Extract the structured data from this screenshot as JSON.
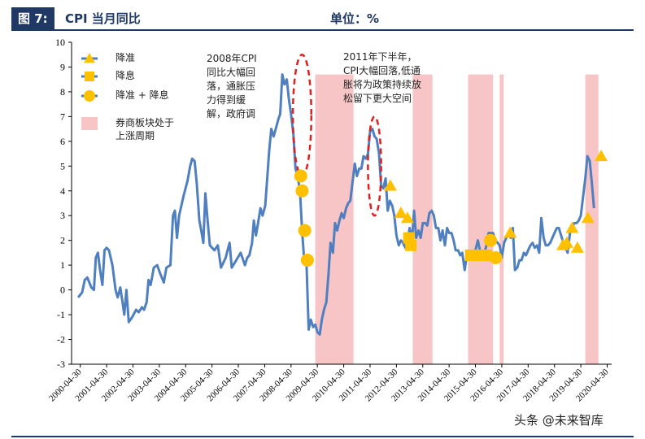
{
  "header": {
    "fig_num": "图 7:",
    "title": "CPI 当月同比",
    "unit": "单位：%"
  },
  "watermark": "头条 @未来智库",
  "annotations": [
    {
      "id": "a2008",
      "text": "2008年CPI\n同比大幅回\n落，通胀压\n力得到缓\n解，政府调"
    },
    {
      "id": "a2011",
      "text": "2011年下半年，\nCPI大幅回落,低通\n胀将为政策持续放\n松留下更大空间"
    }
  ],
  "colors": {
    "line": "#4f7fbf",
    "shade": "#f7c5c5",
    "marker": "#ffc000",
    "circle": "#e02020",
    "header": "#1f3864"
  },
  "chart_data": {
    "type": "line",
    "ylim": [
      -3,
      10
    ],
    "yticks": [
      "-3",
      "-2",
      "-1",
      "0",
      "1",
      "2",
      "3",
      "4",
      "5",
      "6",
      "7",
      "8",
      "9",
      "10"
    ],
    "xlabels": [
      "2000-04-30",
      "2001-04-30",
      "2002-04-30",
      "2003-04-30",
      "2004-04-30",
      "2005-04-30",
      "2006-04-30",
      "2007-04-30",
      "2008-04-30",
      "2009-04-30",
      "2010-04-30",
      "2011-04-30",
      "2012-04-30",
      "2013-04-30",
      "2014-04-30",
      "2015-04-30",
      "2016-04-30",
      "2017-04-30",
      "2018-04-30",
      "2019-04-30",
      "2020-04-30"
    ],
    "legend": [
      {
        "marker": "triangle",
        "label": "降准"
      },
      {
        "marker": "square",
        "label": "降息"
      },
      {
        "marker": "circle",
        "label": "降准 + 降息"
      },
      {
        "marker": "rect",
        "label": "券商板块处于\n上涨周期"
      }
    ],
    "shaded_periods": [
      [
        2009.25,
        2010.7
      ],
      [
        2012.95,
        2013.7
      ],
      [
        2015.05,
        2016.0
      ],
      [
        2016.25,
        2016.4
      ],
      [
        2019.5,
        2020.0
      ]
    ],
    "series": [
      {
        "name": "CPI当月同比",
        "points": [
          [
            2000.25,
            -0.3
          ],
          [
            2000.4,
            -0.1
          ],
          [
            2000.5,
            0.4
          ],
          [
            2000.6,
            0.5
          ],
          [
            2000.75,
            0.1
          ],
          [
            2000.85,
            0.0
          ],
          [
            2000.92,
            1.3
          ],
          [
            2001.0,
            1.5
          ],
          [
            2001.08,
            0.8
          ],
          [
            2001.17,
            0.2
          ],
          [
            2001.25,
            1.6
          ],
          [
            2001.33,
            1.7
          ],
          [
            2001.42,
            1.6
          ],
          [
            2001.55,
            1.0
          ],
          [
            2001.67,
            0.0
          ],
          [
            2001.75,
            -0.3
          ],
          [
            2001.85,
            0.1
          ],
          [
            2001.92,
            -0.4
          ],
          [
            2002.0,
            -1.0
          ],
          [
            2002.08,
            0.0
          ],
          [
            2002.17,
            -1.3
          ],
          [
            2002.3,
            -1.1
          ],
          [
            2002.45,
            -0.8
          ],
          [
            2002.55,
            -0.9
          ],
          [
            2002.67,
            -0.7
          ],
          [
            2002.75,
            -0.8
          ],
          [
            2002.85,
            -0.5
          ],
          [
            2002.92,
            0.4
          ],
          [
            2003.0,
            0.2
          ],
          [
            2003.12,
            0.9
          ],
          [
            2003.25,
            1.0
          ],
          [
            2003.35,
            0.7
          ],
          [
            2003.5,
            0.3
          ],
          [
            2003.6,
            0.9
          ],
          [
            2003.75,
            1.0
          ],
          [
            2003.85,
            3.0
          ],
          [
            2003.92,
            3.2
          ],
          [
            2004.0,
            2.1
          ],
          [
            2004.08,
            3.0
          ],
          [
            2004.25,
            3.8
          ],
          [
            2004.4,
            4.4
          ],
          [
            2004.5,
            5.0
          ],
          [
            2004.58,
            5.3
          ],
          [
            2004.67,
            5.2
          ],
          [
            2004.75,
            4.3
          ],
          [
            2004.85,
            2.8
          ],
          [
            2004.92,
            2.4
          ],
          [
            2005.0,
            1.9
          ],
          [
            2005.08,
            3.9
          ],
          [
            2005.17,
            2.7
          ],
          [
            2005.25,
            1.8
          ],
          [
            2005.42,
            1.6
          ],
          [
            2005.55,
            1.8
          ],
          [
            2005.67,
            0.9
          ],
          [
            2005.85,
            1.3
          ],
          [
            2005.92,
            1.6
          ],
          [
            2006.0,
            1.9
          ],
          [
            2006.08,
            0.9
          ],
          [
            2006.25,
            1.2
          ],
          [
            2006.42,
            1.5
          ],
          [
            2006.58,
            1.0
          ],
          [
            2006.67,
            1.3
          ],
          [
            2006.75,
            1.4
          ],
          [
            2006.85,
            1.9
          ],
          [
            2006.92,
            2.8
          ],
          [
            2007.0,
            2.2
          ],
          [
            2007.08,
            2.7
          ],
          [
            2007.17,
            3.3
          ],
          [
            2007.25,
            3.0
          ],
          [
            2007.35,
            3.4
          ],
          [
            2007.42,
            4.4
          ],
          [
            2007.5,
            5.6
          ],
          [
            2007.58,
            6.5
          ],
          [
            2007.67,
            6.2
          ],
          [
            2007.75,
            6.5
          ],
          [
            2007.85,
            6.9
          ],
          [
            2007.92,
            7.1
          ],
          [
            2008.0,
            8.7
          ],
          [
            2008.08,
            8.3
          ],
          [
            2008.17,
            8.5
          ],
          [
            2008.25,
            7.7
          ],
          [
            2008.33,
            7.1
          ],
          [
            2008.42,
            6.3
          ],
          [
            2008.5,
            4.9
          ],
          [
            2008.58,
            4.6
          ],
          [
            2008.67,
            4.0
          ],
          [
            2008.75,
            2.4
          ],
          [
            2008.83,
            1.2
          ],
          [
            2008.92,
            1.0
          ],
          [
            2009.0,
            -1.6
          ],
          [
            2009.08,
            -1.2
          ],
          [
            2009.17,
            -1.5
          ],
          [
            2009.25,
            -1.4
          ],
          [
            2009.33,
            -1.7
          ],
          [
            2009.42,
            -1.8
          ],
          [
            2009.5,
            -1.2
          ],
          [
            2009.58,
            -0.8
          ],
          [
            2009.67,
            -0.5
          ],
          [
            2009.75,
            0.6
          ],
          [
            2009.83,
            1.9
          ],
          [
            2009.92,
            1.5
          ],
          [
            2010.0,
            2.7
          ],
          [
            2010.08,
            2.4
          ],
          [
            2010.17,
            2.8
          ],
          [
            2010.25,
            3.1
          ],
          [
            2010.33,
            2.9
          ],
          [
            2010.42,
            3.3
          ],
          [
            2010.5,
            3.5
          ],
          [
            2010.58,
            3.6
          ],
          [
            2010.67,
            4.4
          ],
          [
            2010.75,
            5.1
          ],
          [
            2010.83,
            4.6
          ],
          [
            2010.92,
            4.9
          ],
          [
            2011.0,
            4.9
          ],
          [
            2011.08,
            5.4
          ],
          [
            2011.17,
            5.3
          ],
          [
            2011.25,
            5.5
          ],
          [
            2011.33,
            6.4
          ],
          [
            2011.42,
            6.5
          ],
          [
            2011.5,
            6.2
          ],
          [
            2011.58,
            6.1
          ],
          [
            2011.67,
            5.5
          ],
          [
            2011.75,
            4.2
          ],
          [
            2011.83,
            4.1
          ],
          [
            2011.92,
            4.5
          ],
          [
            2012.0,
            3.2
          ],
          [
            2012.08,
            3.6
          ],
          [
            2012.17,
            3.4
          ],
          [
            2012.25,
            3.0
          ],
          [
            2012.33,
            2.2
          ],
          [
            2012.42,
            1.8
          ],
          [
            2012.5,
            2.0
          ],
          [
            2012.58,
            1.9
          ],
          [
            2012.67,
            1.7
          ],
          [
            2012.75,
            2.0
          ],
          [
            2012.83,
            2.5
          ],
          [
            2012.92,
            2.0
          ],
          [
            2013.0,
            3.2
          ],
          [
            2013.08,
            2.1
          ],
          [
            2013.17,
            2.4
          ],
          [
            2013.25,
            2.1
          ],
          [
            2013.33,
            2.7
          ],
          [
            2013.42,
            2.7
          ],
          [
            2013.5,
            2.6
          ],
          [
            2013.58,
            3.1
          ],
          [
            2013.67,
            3.2
          ],
          [
            2013.75,
            3.0
          ],
          [
            2013.83,
            2.5
          ],
          [
            2013.92,
            2.5
          ],
          [
            2014.0,
            2.0
          ],
          [
            2014.08,
            2.4
          ],
          [
            2014.17,
            1.8
          ],
          [
            2014.25,
            2.5
          ],
          [
            2014.33,
            2.3
          ],
          [
            2014.42,
            2.3
          ],
          [
            2014.5,
            2.0
          ],
          [
            2014.58,
            1.6
          ],
          [
            2014.67,
            1.6
          ],
          [
            2014.75,
            1.4
          ],
          [
            2014.83,
            1.5
          ],
          [
            2014.92,
            0.8
          ],
          [
            2015.0,
            1.4
          ],
          [
            2015.08,
            1.4
          ],
          [
            2015.17,
            1.5
          ],
          [
            2015.25,
            1.4
          ],
          [
            2015.33,
            1.6
          ],
          [
            2015.42,
            2.0
          ],
          [
            2015.5,
            1.6
          ],
          [
            2015.58,
            1.3
          ],
          [
            2015.67,
            1.5
          ],
          [
            2015.75,
            1.8
          ],
          [
            2015.83,
            2.3
          ],
          [
            2015.92,
            2.3
          ],
          [
            2016.0,
            2.3
          ],
          [
            2016.08,
            2.0
          ],
          [
            2016.17,
            1.9
          ],
          [
            2016.25,
            1.8
          ],
          [
            2016.33,
            1.3
          ],
          [
            2016.42,
            1.9
          ],
          [
            2016.5,
            2.1
          ],
          [
            2016.58,
            2.3
          ],
          [
            2016.67,
            2.1
          ],
          [
            2016.75,
            2.5
          ],
          [
            2016.83,
            0.8
          ],
          [
            2016.92,
            0.9
          ],
          [
            2017.0,
            1.2
          ],
          [
            2017.08,
            1.2
          ],
          [
            2017.17,
            1.5
          ],
          [
            2017.25,
            1.4
          ],
          [
            2017.33,
            1.6
          ],
          [
            2017.42,
            1.8
          ],
          [
            2017.5,
            1.9
          ],
          [
            2017.58,
            1.7
          ],
          [
            2017.67,
            1.8
          ],
          [
            2017.75,
            1.5
          ],
          [
            2017.83,
            2.9
          ],
          [
            2017.92,
            2.1
          ],
          [
            2018.0,
            1.8
          ],
          [
            2018.08,
            1.8
          ],
          [
            2018.17,
            1.9
          ],
          [
            2018.25,
            2.1
          ],
          [
            2018.33,
            2.3
          ],
          [
            2018.42,
            2.5
          ],
          [
            2018.5,
            2.5
          ],
          [
            2018.58,
            2.2
          ],
          [
            2018.67,
            1.9
          ],
          [
            2018.75,
            1.7
          ],
          [
            2018.83,
            1.5
          ],
          [
            2018.92,
            2.3
          ],
          [
            2019.0,
            2.5
          ],
          [
            2019.08,
            2.7
          ],
          [
            2019.17,
            2.7
          ],
          [
            2019.25,
            2.8
          ],
          [
            2019.33,
            3.0
          ],
          [
            2019.42,
            3.8
          ],
          [
            2019.5,
            4.5
          ],
          [
            2019.58,
            5.4
          ],
          [
            2019.67,
            5.2
          ],
          [
            2019.75,
            4.3
          ],
          [
            2019.83,
            3.3
          ]
        ]
      }
    ],
    "markers": {
      "triangle": [
        [
          2012.1,
          4.2
        ],
        [
          2012.5,
          3.1
        ],
        [
          2012.75,
          2.9
        ],
        [
          2016.65,
          2.3
        ],
        [
          2018.65,
          1.8
        ],
        [
          2018.8,
          1.9
        ],
        [
          2019.0,
          2.5
        ],
        [
          2019.2,
          1.7
        ],
        [
          2019.6,
          2.9
        ],
        [
          2020.1,
          5.4
        ]
      ],
      "square": [
        [
          2012.8,
          2.1
        ],
        [
          2012.88,
          1.8
        ],
        [
          2015.15,
          1.4
        ],
        [
          2015.5,
          1.4
        ],
        [
          2015.75,
          1.4
        ]
      ],
      "circle": [
        [
          2008.7,
          4.6
        ],
        [
          2008.75,
          4.0
        ],
        [
          2008.85,
          2.4
        ],
        [
          2008.95,
          1.2
        ],
        [
          2015.9,
          2.0
        ],
        [
          2016.1,
          1.3
        ]
      ]
    },
    "highlight_ellipses": [
      {
        "period": [
          2008.4,
          2009.1
        ],
        "range": [
          4.6,
          9.5
        ]
      },
      {
        "period": [
          2011.25,
          2011.75
        ],
        "range": [
          3.0,
          7.0
        ]
      }
    ]
  }
}
